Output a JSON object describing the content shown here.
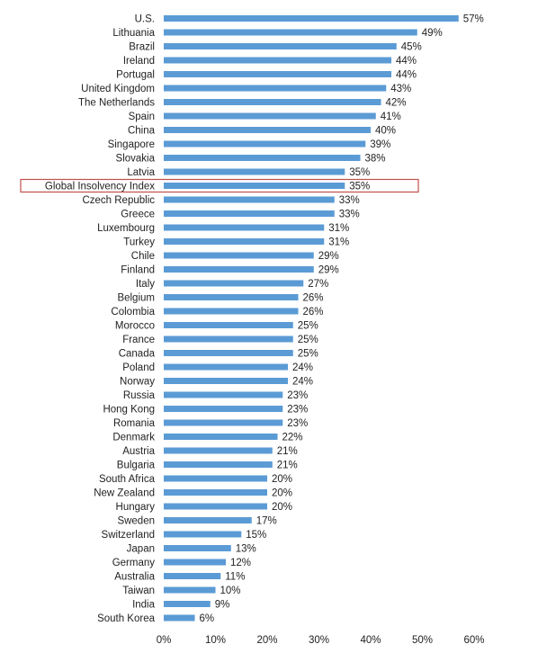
{
  "chart_data": {
    "type": "bar",
    "orientation": "horizontal",
    "categories": [
      "U.S.",
      "Lithuania",
      "Brazil",
      "Ireland",
      "Portugal",
      "United Kingdom",
      "The Netherlands",
      "Spain",
      "China",
      "Singapore",
      "Slovakia",
      "Latvia",
      "Global Insolvency Index",
      "Czech Republic",
      "Greece",
      "Luxembourg",
      "Turkey",
      "Chile",
      "Finland",
      "Italy",
      "Belgium",
      "Colombia",
      "Morocco",
      "France",
      "Canada",
      "Poland",
      "Norway",
      "Russia",
      "Hong Kong",
      "Romania",
      "Denmark",
      "Austria",
      "Bulgaria",
      "South Africa",
      "New Zealand",
      "Hungary",
      "Sweden",
      "Switzerland",
      "Japan",
      "Germany",
      "Australia",
      "Taiwan",
      "India",
      "South Korea"
    ],
    "values": [
      57,
      49,
      45,
      44,
      44,
      43,
      42,
      41,
      40,
      39,
      38,
      35,
      35,
      33,
      33,
      31,
      31,
      29,
      29,
      27,
      26,
      26,
      25,
      25,
      25,
      24,
      24,
      23,
      23,
      23,
      22,
      21,
      21,
      20,
      20,
      20,
      17,
      15,
      13,
      12,
      11,
      10,
      9,
      6
    ],
    "value_labels": [
      "57%",
      "49%",
      "45%",
      "44%",
      "44%",
      "43%",
      "42%",
      "41%",
      "40%",
      "39%",
      "38%",
      "35%",
      "35%",
      "33%",
      "33%",
      "31%",
      "31%",
      "29%",
      "29%",
      "27%",
      "26%",
      "26%",
      "25%",
      "25%",
      "25%",
      "24%",
      "24%",
      "23%",
      "23%",
      "23%",
      "22%",
      "21%",
      "21%",
      "20%",
      "20%",
      "20%",
      "17%",
      "15%",
      "13%",
      "12%",
      "11%",
      "10%",
      "9%",
      "6%"
    ],
    "x_ticks": [
      0,
      10,
      20,
      30,
      40,
      50,
      60
    ],
    "x_tick_labels": [
      "0%",
      "10%",
      "20%",
      "30%",
      "40%",
      "50%",
      "60%"
    ],
    "xlim": [
      0,
      60
    ],
    "highlighted_category": "Global Insolvency Index",
    "bar_color": "#5B9BD5",
    "highlight_box_color": "#C0504D",
    "grid": false,
    "title": "",
    "xlabel": "",
    "ylabel": ""
  }
}
